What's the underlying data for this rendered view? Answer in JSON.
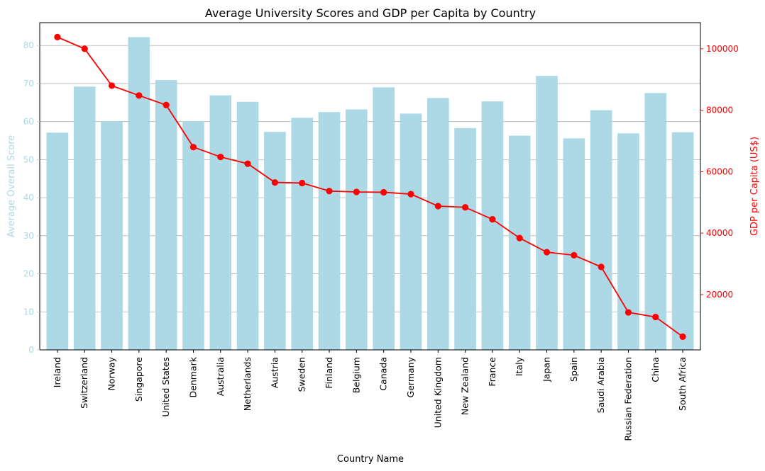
{
  "chart_data": {
    "type": "bar+line",
    "title": "Average University Scores and GDP per Capita by Country",
    "xlabel": "Country Name",
    "ylabel_left": "Average Overall Score",
    "ylabel_right": "GDP per Capita (US$)",
    "ylim_left": [
      0,
      86
    ],
    "ylim_right": [
      2000,
      108500
    ],
    "yticks_left": [
      0,
      10,
      20,
      30,
      40,
      50,
      60,
      70,
      80
    ],
    "yticks_right": [
      20000,
      40000,
      60000,
      80000,
      100000
    ],
    "grid": "horizontal (left axis)",
    "colors": {
      "bars": "#add8e6",
      "line": "#ff0000",
      "left_axis_text": "#add8e6",
      "right_axis_text": "#ff0000"
    },
    "categories": [
      "Ireland",
      "Switzerland",
      "Norway",
      "Singapore",
      "United States",
      "Denmark",
      "Australia",
      "Netherlands",
      "Austria",
      "Sweden",
      "Finland",
      "Belgium",
      "Canada",
      "Germany",
      "United Kingdom",
      "New Zealand",
      "France",
      "Italy",
      "Japan",
      "Spain",
      "Saudi Arabia",
      "Russian Federation",
      "China",
      "South Africa"
    ],
    "series": [
      {
        "type": "bar",
        "axis": "left",
        "values": [
          57.1,
          69.2,
          60.1,
          82.2,
          70.9,
          60.1,
          66.9,
          65.2,
          57.3,
          61.0,
          62.5,
          63.2,
          69.0,
          62.1,
          66.2,
          58.3,
          65.3,
          56.3,
          72.0,
          55.6,
          63.0,
          56.9,
          67.5,
          57.2
        ]
      },
      {
        "type": "line",
        "axis": "right",
        "values": [
          103800,
          100000,
          88000,
          84800,
          81700,
          68000,
          64800,
          62600,
          56500,
          56300,
          53700,
          53400,
          53300,
          52700,
          48800,
          48400,
          44500,
          38400,
          33800,
          32800,
          29000,
          14200,
          12700,
          6300
        ]
      }
    ]
  }
}
